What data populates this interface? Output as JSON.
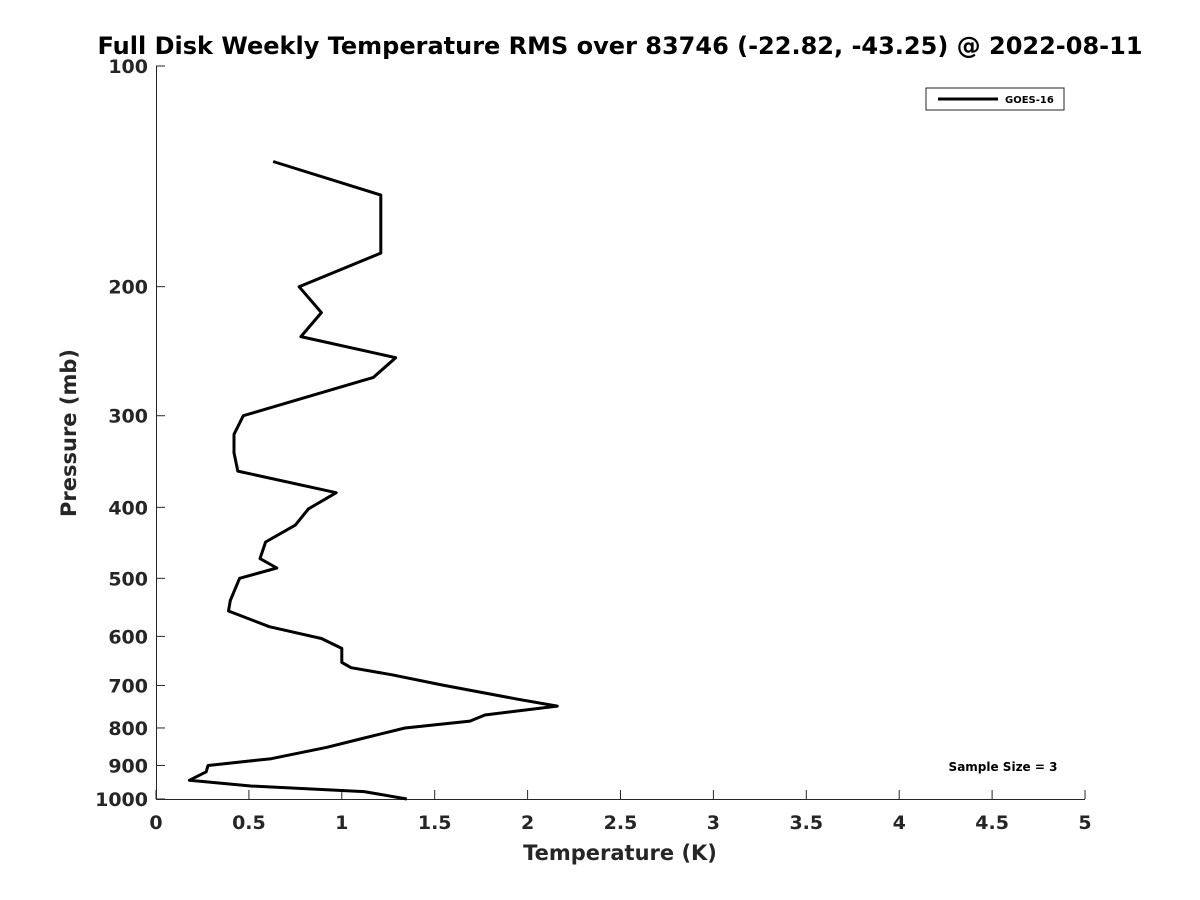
{
  "chart_data": {
    "type": "line",
    "title": "Full Disk Weekly Temperature RMS over 83746 (-22.82, -43.25) @ 2022-08-11",
    "xlabel": "Temperature (K)",
    "ylabel": "Pressure (mb)",
    "xlim": [
      0,
      5
    ],
    "ylim": [
      100,
      1000
    ],
    "yscale": "log",
    "y_reversed": true,
    "grid": false,
    "legend_position": "top-right",
    "x_ticks": [
      "0",
      "0.5",
      "1",
      "1.5",
      "2",
      "2.5",
      "3",
      "3.5",
      "4",
      "4.5",
      "5"
    ],
    "y_ticks": [
      "100",
      "200",
      "300",
      "400",
      "500",
      "600",
      "700",
      "800",
      "900",
      "1000"
    ],
    "annotation": "Sample Size = 3",
    "series": [
      {
        "name": "GOES-16",
        "color": "#000000",
        "points": [
          [
            0.63,
            135
          ],
          [
            1.21,
            150
          ],
          [
            1.21,
            180
          ],
          [
            0.77,
            200
          ],
          [
            0.89,
            217
          ],
          [
            0.78,
            234
          ],
          [
            1.29,
            250
          ],
          [
            1.17,
            266
          ],
          [
            0.47,
            300
          ],
          [
            0.42,
            318
          ],
          [
            0.42,
            337
          ],
          [
            0.44,
            357
          ],
          [
            0.97,
            382
          ],
          [
            0.82,
            402
          ],
          [
            0.75,
            423
          ],
          [
            0.59,
            446
          ],
          [
            0.56,
            470
          ],
          [
            0.65,
            484
          ],
          [
            0.45,
            500
          ],
          [
            0.4,
            536
          ],
          [
            0.39,
            554
          ],
          [
            0.61,
            582
          ],
          [
            0.89,
            604
          ],
          [
            1.0,
            623
          ],
          [
            1.0,
            651
          ],
          [
            1.05,
            662
          ],
          [
            1.27,
            677
          ],
          [
            1.54,
            699
          ],
          [
            1.95,
            731
          ],
          [
            2.16,
            747
          ],
          [
            1.77,
            768
          ],
          [
            1.69,
            783
          ],
          [
            1.34,
            800
          ],
          [
            1.11,
            827
          ],
          [
            0.92,
            850
          ],
          [
            0.62,
            881
          ],
          [
            0.28,
            900
          ],
          [
            0.27,
            918
          ],
          [
            0.18,
            943
          ],
          [
            0.51,
            960
          ],
          [
            1.12,
            977
          ],
          [
            1.35,
            1000
          ]
        ]
      }
    ]
  }
}
